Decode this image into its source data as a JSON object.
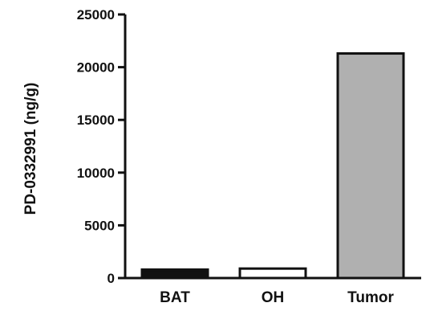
{
  "chart_data": {
    "type": "bar",
    "title": "",
    "xlabel": "",
    "ylabel": "PD-0332991 (ng/g)",
    "categories": [
      "BAT",
      "OH",
      "Tumor"
    ],
    "values": [
      800,
      900,
      21300
    ],
    "ylim": [
      0,
      25000
    ],
    "yticks": [
      "0",
      "5000",
      "10000",
      "15000",
      "20000",
      "25000"
    ],
    "grid": false,
    "legend": "none",
    "bar_colors": [
      "#111111",
      "#ffffff",
      "#b0b0b0"
    ],
    "bar_edge_color": "#111111"
  }
}
